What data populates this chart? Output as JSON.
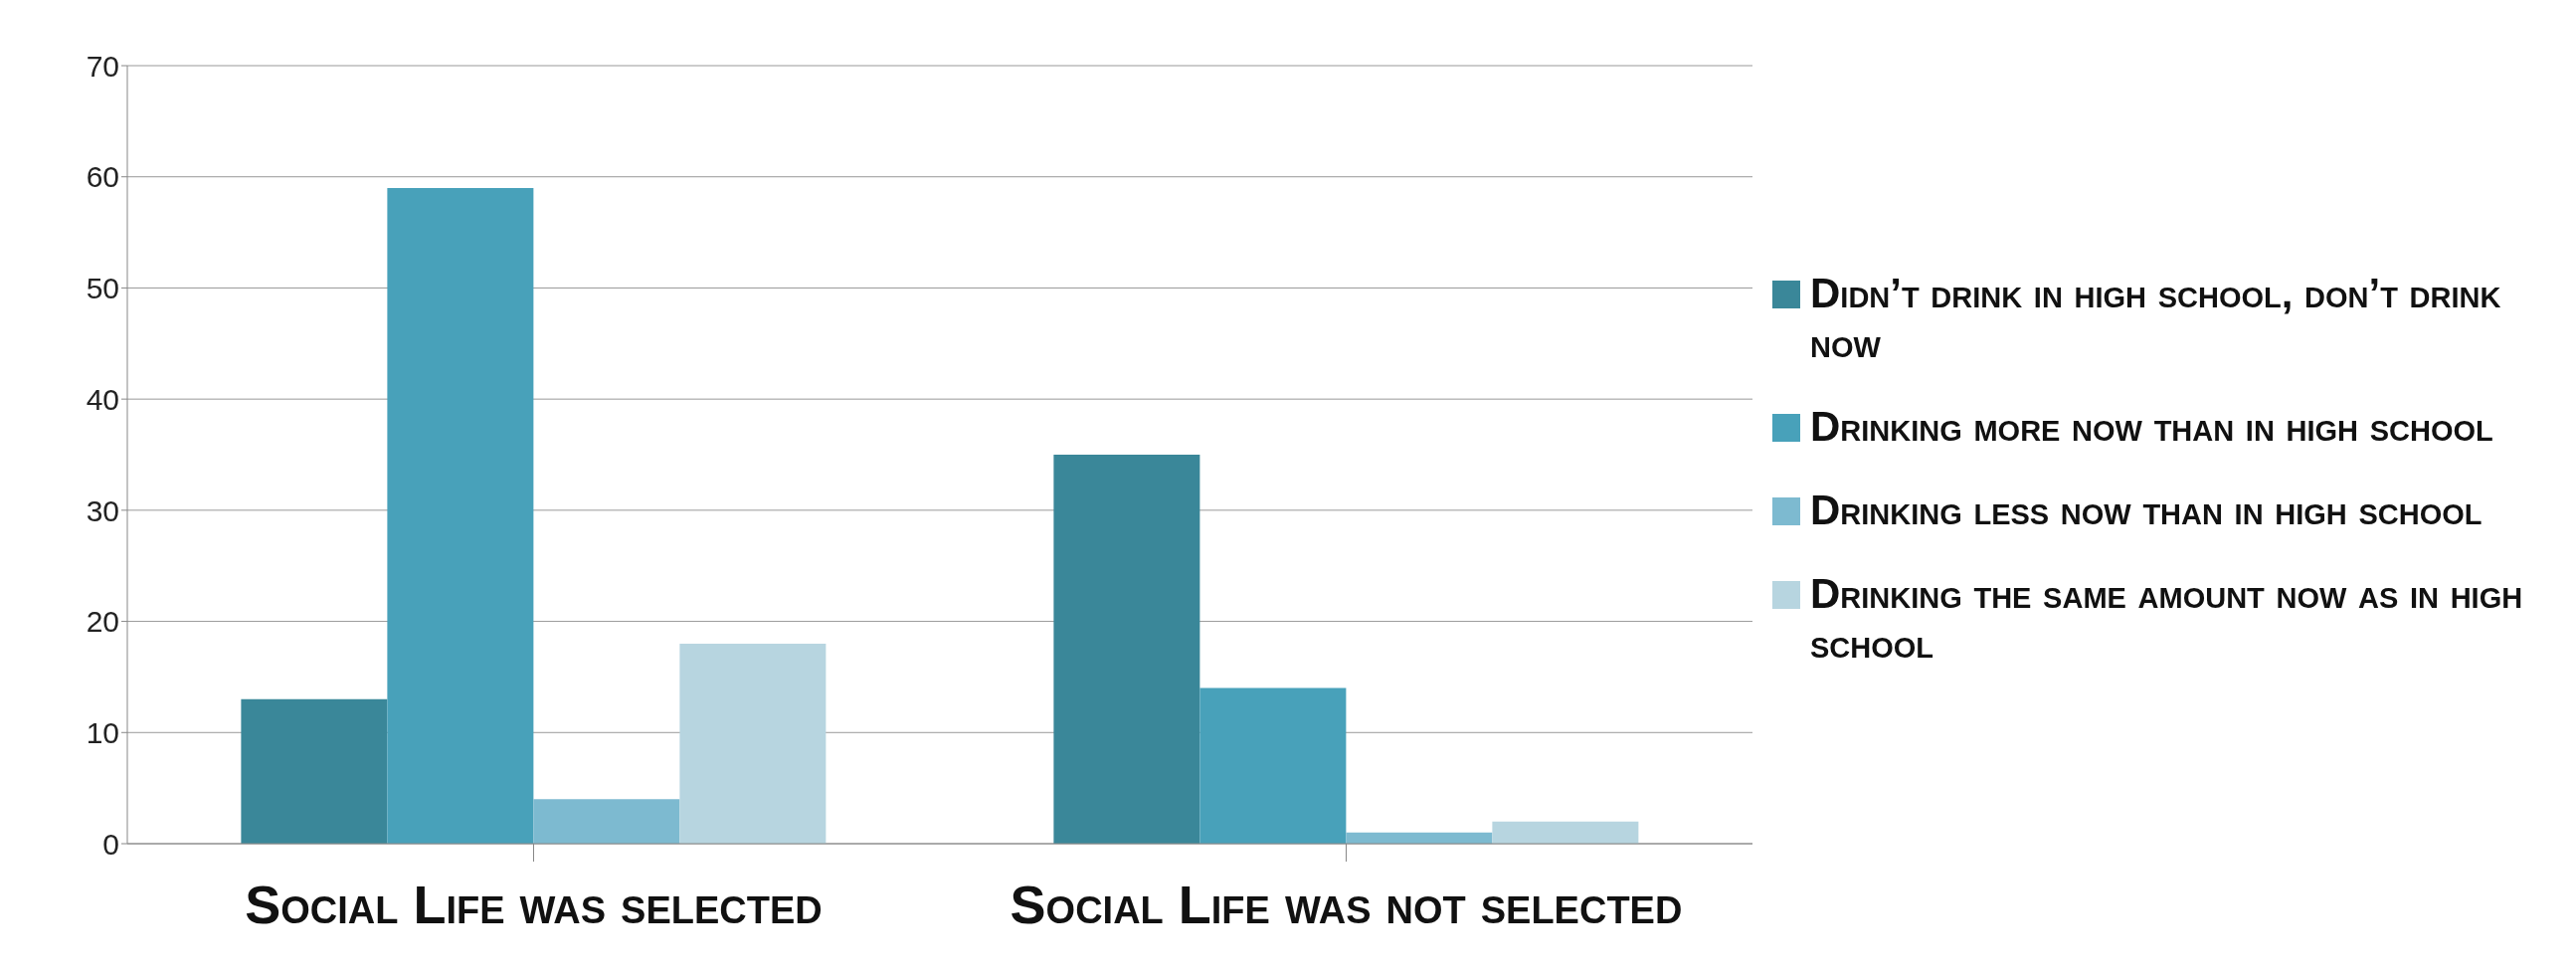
{
  "chart_data": {
    "type": "bar",
    "categories": [
      "Social Life was selected",
      "Social Life was not selected"
    ],
    "series": [
      {
        "name": "Didn’t drink in high school, don’t drink now",
        "color": "#3a8799",
        "values": [
          13,
          35
        ]
      },
      {
        "name": "Drinking more now than in high school",
        "color": "#48a1ba",
        "values": [
          59,
          14
        ]
      },
      {
        "name": "Drinking less now than in high school",
        "color": "#7dbad0",
        "values": [
          4,
          1
        ]
      },
      {
        "name": "Drinking the same amount now as in high school",
        "color": "#b7d5e0",
        "values": [
          18,
          2
        ]
      }
    ],
    "ylim": [
      0,
      70
    ],
    "yticks": [
      0,
      10,
      20,
      30,
      40,
      50,
      60,
      70
    ],
    "grid": "y",
    "legend": "right"
  }
}
